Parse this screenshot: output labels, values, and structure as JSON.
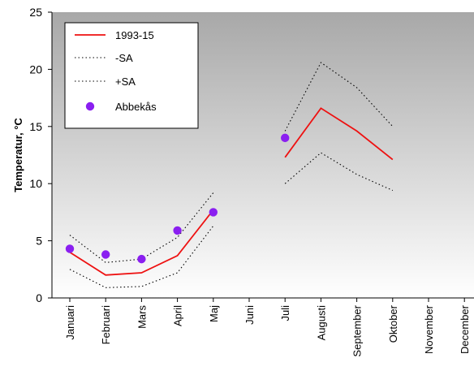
{
  "chart_data": {
    "type": "line",
    "ylabel": "Temperatur, °C",
    "xlabel": "",
    "ylim": [
      0,
      25
    ],
    "yticks": [
      0,
      5,
      10,
      15,
      20,
      25
    ],
    "categories": [
      "Januari",
      "Februari",
      "Mars",
      "April",
      "Maj",
      "Juni",
      "Juli",
      "Augusti",
      "September",
      "Oktober",
      "November",
      "December"
    ],
    "series": [
      {
        "name": "1993-15",
        "style": "solid",
        "color": "#ee1111",
        "values": [
          4.0,
          2.0,
          2.2,
          3.7,
          7.7,
          null,
          12.3,
          16.6,
          14.6,
          12.1,
          null,
          null
        ]
      },
      {
        "name": "-SA",
        "style": "dotted",
        "color": "#000000",
        "values": [
          2.5,
          0.9,
          1.0,
          2.2,
          6.3,
          null,
          10.0,
          12.7,
          10.8,
          9.4,
          null,
          null
        ]
      },
      {
        "name": "+SA",
        "style": "dotted",
        "color": "#000000",
        "values": [
          5.5,
          3.1,
          3.4,
          5.3,
          9.2,
          null,
          14.6,
          20.6,
          18.4,
          15.0,
          null,
          null
        ]
      },
      {
        "name": "Abbekås",
        "style": "marker",
        "color": "#8a1ff0",
        "values": [
          4.3,
          3.8,
          3.4,
          5.9,
          7.5,
          null,
          14.0,
          null,
          null,
          null,
          null,
          null
        ]
      }
    ],
    "legend": "top-left",
    "grid": false,
    "background": "gradient dark gray to white"
  }
}
